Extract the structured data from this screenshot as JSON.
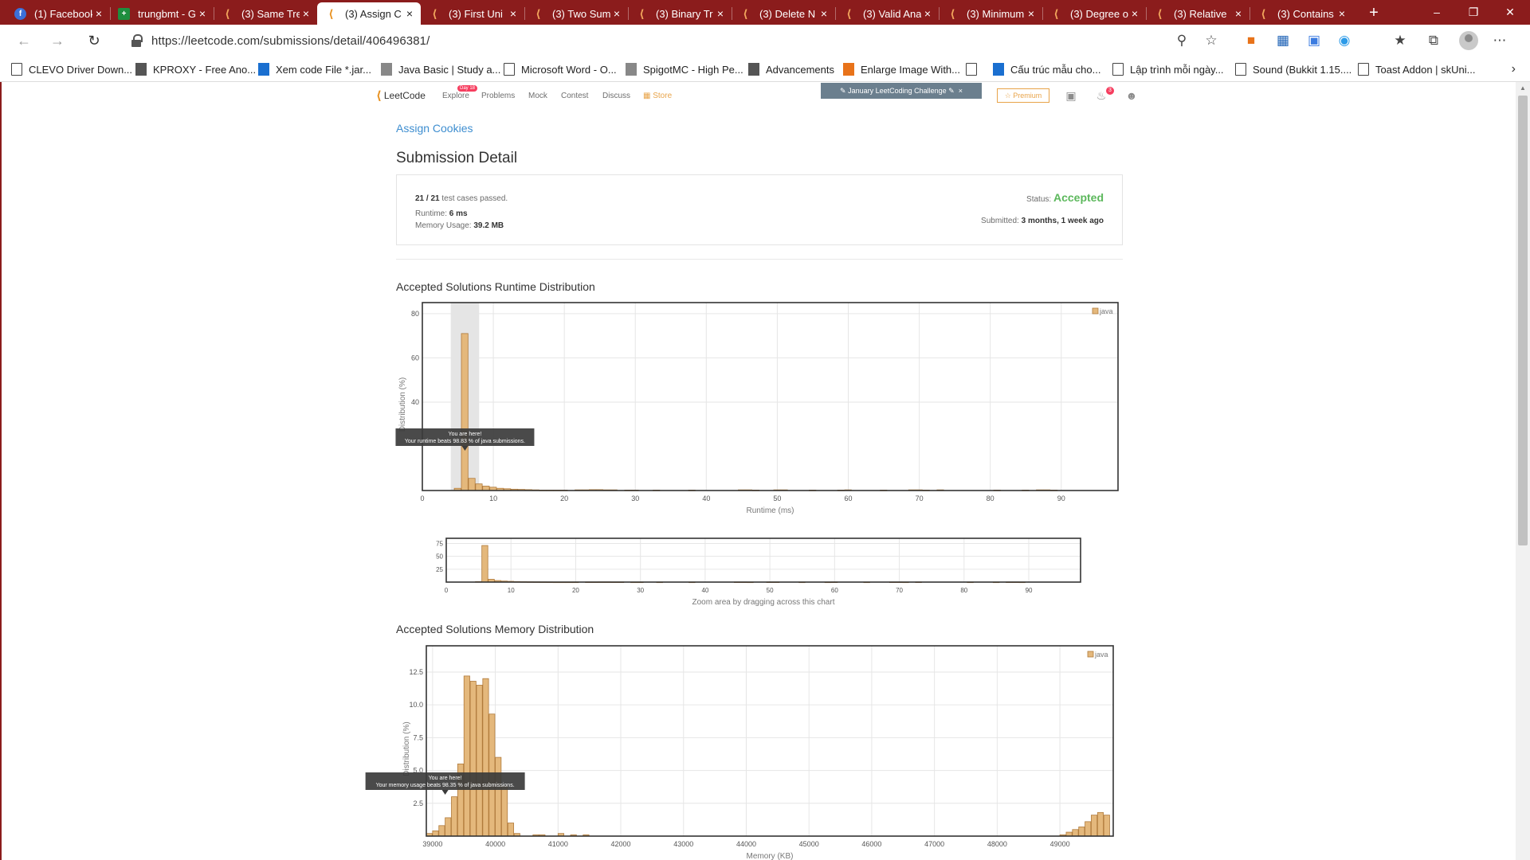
{
  "browser": {
    "tabs": [
      {
        "title": "(1) Facebook",
        "icon": "facebook-icon",
        "active": false
      },
      {
        "title": "trungbmt - G",
        "icon": "sheets-icon",
        "active": false
      },
      {
        "title": "(3) Same Tre",
        "icon": "leetcode-icon",
        "active": false
      },
      {
        "title": "(3) Assign C",
        "icon": "leetcode-icon",
        "active": true
      },
      {
        "title": "(3) First Uni",
        "icon": "leetcode-icon",
        "active": false
      },
      {
        "title": "(3) Two Sum",
        "icon": "leetcode-icon",
        "active": false
      },
      {
        "title": "(3) Binary Tr",
        "icon": "leetcode-icon",
        "active": false
      },
      {
        "title": "(3) Delete N",
        "icon": "leetcode-icon",
        "active": false
      },
      {
        "title": "(3) Valid Ana",
        "icon": "leetcode-icon",
        "active": false
      },
      {
        "title": "(3) Minimum",
        "icon": "leetcode-icon",
        "active": false
      },
      {
        "title": "(3) Degree o",
        "icon": "leetcode-icon",
        "active": false
      },
      {
        "title": "(3) Relative",
        "icon": "leetcode-icon",
        "active": false
      },
      {
        "title": "(3) Contains",
        "icon": "leetcode-icon",
        "active": false
      }
    ],
    "url": "https://leetcode.com/submissions/detail/406496381/",
    "bookmarks": [
      {
        "label": "CLEVO Driver Down...",
        "icon": "page"
      },
      {
        "label": "KPROXY - Free Ano...",
        "icon": "sq"
      },
      {
        "label": "Xem code File *.jar...",
        "icon": "blue"
      },
      {
        "label": "Java Basic | Study a...",
        "icon": "gray"
      },
      {
        "label": "Microsoft Word - O...",
        "icon": "page"
      },
      {
        "label": "SpigotMC - High Pe...",
        "icon": "gray"
      },
      {
        "label": "Advancements",
        "icon": "sq"
      },
      {
        "label": "Enlarge Image With...",
        "icon": "orange"
      },
      {
        "label": "",
        "icon": "page"
      },
      {
        "label": "Cấu trúc mẫu cho...",
        "icon": "blue"
      },
      {
        "label": "Lập trình mỗi ngày...",
        "icon": "page"
      },
      {
        "label": "Sound (Bukkit 1.15....",
        "icon": "page"
      },
      {
        "label": "Toast Addon | skUni...",
        "icon": "page"
      }
    ]
  },
  "leetcode_nav": {
    "logo": "LeetCode",
    "links": [
      "Explore",
      "Problems",
      "Mock",
      "Contest",
      "Discuss"
    ],
    "store": "Store",
    "explore_badge": "Day 18",
    "challenge": "January LeetCoding Challenge",
    "premium": "Premium",
    "notification_count": "3"
  },
  "submission": {
    "problem": "Assign Cookies",
    "title": "Submission Detail",
    "passed": "21 / 21",
    "passed_suffix": "test cases passed.",
    "runtime_label": "Runtime:",
    "runtime_value": "6 ms",
    "memory_label": "Memory Usage:",
    "memory_value": "39.2 MB",
    "status_label": "Status:",
    "status_value": "Accepted",
    "submitted_label": "Submitted:",
    "submitted_value": "3 months, 1 week ago",
    "status_color": "#5cb85c"
  },
  "sections": {
    "runtime_title": "Accepted Solutions Runtime Distribution",
    "memory_title": "Accepted Solutions Memory Distribution"
  },
  "chart_data": [
    {
      "type": "bar",
      "id": "runtime",
      "xlabel": "Runtime (ms)",
      "ylabel": "Distribution (%)",
      "xlim": [
        0,
        98
      ],
      "ylim": [
        0,
        85
      ],
      "xticks": [
        0,
        10,
        20,
        30,
        40,
        50,
        60,
        70,
        80,
        90
      ],
      "yticks": [
        40,
        60,
        80
      ],
      "bar_width": 1,
      "legend": "java",
      "bar_color": "#e4b87c",
      "bar_edge": "#b07a3b",
      "highlight_range": [
        4,
        8
      ],
      "tooltip_line1": "You are here!",
      "tooltip_line2": "Your runtime beats 98.83 % of java submissions.",
      "tooltip_x": 6,
      "bars": [
        {
          "x": 5,
          "y": 1
        },
        {
          "x": 6,
          "y": 71
        },
        {
          "x": 7,
          "y": 5.5
        },
        {
          "x": 8,
          "y": 3
        },
        {
          "x": 9,
          "y": 2
        },
        {
          "x": 10,
          "y": 1.5
        },
        {
          "x": 11,
          "y": 1
        },
        {
          "x": 12,
          "y": 0.8
        },
        {
          "x": 13,
          "y": 0.6
        },
        {
          "x": 14,
          "y": 0.5
        },
        {
          "x": 15,
          "y": 0.4
        },
        {
          "x": 16,
          "y": 0.3
        },
        {
          "x": 17,
          "y": 0.2
        },
        {
          "x": 18,
          "y": 0.2
        },
        {
          "x": 19,
          "y": 0.2
        },
        {
          "x": 20,
          "y": 0.2
        },
        {
          "x": 22,
          "y": 0.3
        },
        {
          "x": 23,
          "y": 0.3
        },
        {
          "x": 24,
          "y": 0.4
        },
        {
          "x": 25,
          "y": 0.4
        },
        {
          "x": 26,
          "y": 0.3
        },
        {
          "x": 27,
          "y": 0.3
        },
        {
          "x": 29,
          "y": 0.2
        },
        {
          "x": 30,
          "y": 0.2
        },
        {
          "x": 33,
          "y": 0.2
        },
        {
          "x": 38,
          "y": 0.2
        },
        {
          "x": 45,
          "y": 0.3
        },
        {
          "x": 46,
          "y": 0.3
        },
        {
          "x": 47,
          "y": 0.2
        },
        {
          "x": 50,
          "y": 0.3
        },
        {
          "x": 51,
          "y": 0.3
        },
        {
          "x": 55,
          "y": 0.2
        },
        {
          "x": 59,
          "y": 0.2
        },
        {
          "x": 60,
          "y": 0.3
        },
        {
          "x": 65,
          "y": 0.2
        },
        {
          "x": 69,
          "y": 0.3
        },
        {
          "x": 70,
          "y": 0.3
        },
        {
          "x": 71,
          "y": 0.2
        },
        {
          "x": 73,
          "y": 0.3
        },
        {
          "x": 81,
          "y": 0.2
        },
        {
          "x": 85,
          "y": 0.2
        },
        {
          "x": 87,
          "y": 0.3
        },
        {
          "x": 88,
          "y": 0.3
        },
        {
          "x": 89,
          "y": 0.2
        }
      ]
    },
    {
      "type": "bar",
      "id": "navigator",
      "xlabel": "Zoom area by dragging across this chart",
      "xlim": [
        0,
        98
      ],
      "ylim": [
        0,
        85
      ],
      "xticks": [
        0,
        10,
        20,
        30,
        40,
        50,
        60,
        70,
        80,
        90
      ],
      "yticks": [
        25,
        50,
        75
      ],
      "source": "runtime"
    },
    {
      "type": "bar",
      "id": "memory",
      "xlabel": "Memory (KB)",
      "ylabel": "Distribution (%)",
      "xlim": [
        38900,
        49850
      ],
      "ylim": [
        0,
        14.5
      ],
      "xticks": [
        39000,
        40000,
        41000,
        42000,
        43000,
        44000,
        45000,
        46000,
        47000,
        48000,
        49000
      ],
      "yticks": [
        2.5,
        5.0,
        7.5,
        10.0,
        12.5
      ],
      "bar_width": 100,
      "legend": "java",
      "bar_color": "#e4b87c",
      "bar_edge": "#b07a3b",
      "tooltip_line1": "You are here!",
      "tooltip_line2": "Your memory usage beats 98.35 % of java submissions.",
      "tooltip_x": 39200,
      "bars": [
        {
          "x": 38950,
          "y": 0.2
        },
        {
          "x": 39050,
          "y": 0.4
        },
        {
          "x": 39150,
          "y": 0.8
        },
        {
          "x": 39250,
          "y": 1.4
        },
        {
          "x": 39350,
          "y": 3.0
        },
        {
          "x": 39450,
          "y": 5.5
        },
        {
          "x": 39550,
          "y": 12.2
        },
        {
          "x": 39650,
          "y": 11.8
        },
        {
          "x": 39750,
          "y": 11.5
        },
        {
          "x": 39850,
          "y": 12.0
        },
        {
          "x": 39950,
          "y": 9.3
        },
        {
          "x": 40050,
          "y": 6.0
        },
        {
          "x": 40150,
          "y": 3.8
        },
        {
          "x": 40250,
          "y": 1.0
        },
        {
          "x": 40350,
          "y": 0.2
        },
        {
          "x": 40650,
          "y": 0.1
        },
        {
          "x": 40750,
          "y": 0.1
        },
        {
          "x": 41050,
          "y": 0.2
        },
        {
          "x": 41250,
          "y": 0.1
        },
        {
          "x": 41450,
          "y": 0.1
        },
        {
          "x": 49050,
          "y": 0.1
        },
        {
          "x": 49150,
          "y": 0.3
        },
        {
          "x": 49250,
          "y": 0.5
        },
        {
          "x": 49350,
          "y": 0.7
        },
        {
          "x": 49450,
          "y": 1.1
        },
        {
          "x": 49550,
          "y": 1.6
        },
        {
          "x": 49650,
          "y": 1.8
        },
        {
          "x": 49750,
          "y": 1.6
        }
      ]
    }
  ]
}
